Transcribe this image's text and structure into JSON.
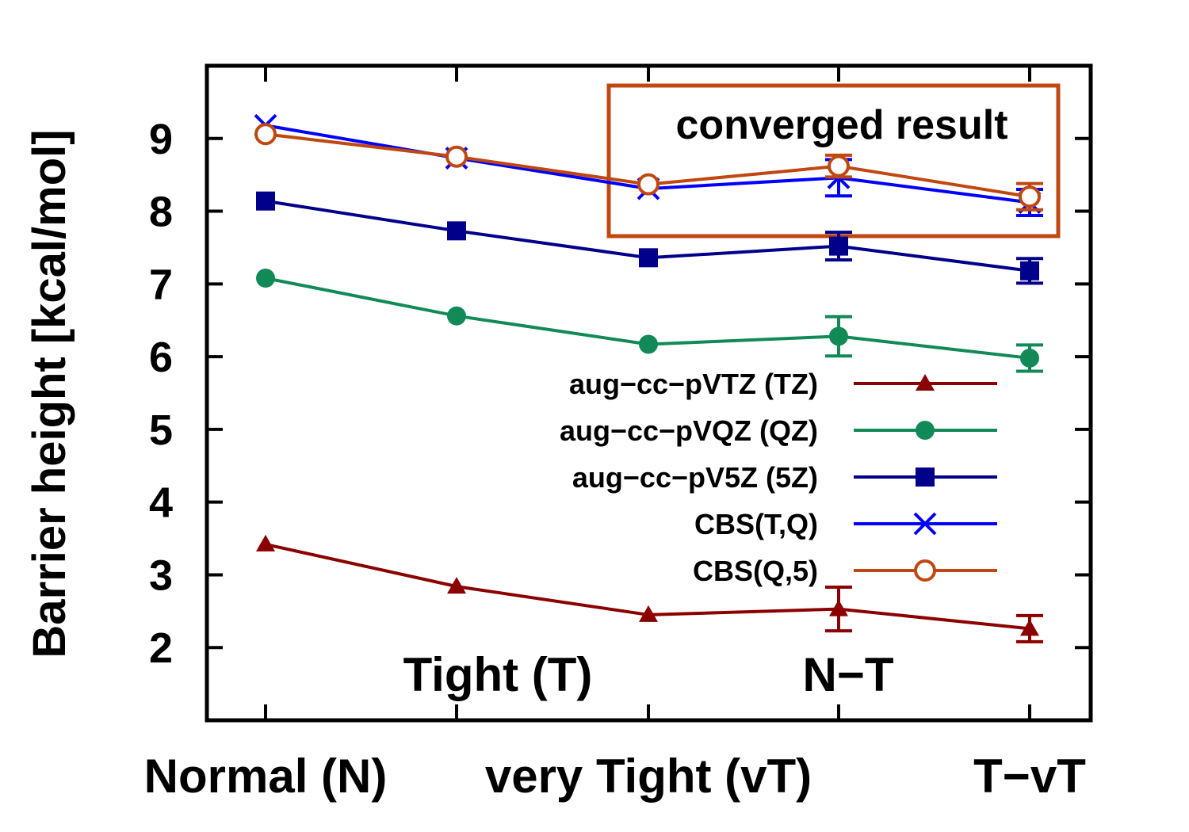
{
  "chart_data": {
    "type": "line",
    "ylabel": "Barrier height [kcal/mol]",
    "xlabel": "",
    "ylim": [
      1,
      10
    ],
    "y_ticks": [
      2,
      3,
      4,
      5,
      6,
      7,
      8,
      9
    ],
    "grid": false,
    "legend_position": "right-middle",
    "categories": [
      "Normal (N)",
      "Tight (T)",
      "very Tight (vT)",
      "N−T",
      "T−vT"
    ],
    "series": [
      {
        "name": "aug−cc−pVTZ (TZ)",
        "color": "#8b0000",
        "marker": "triangle",
        "values": [
          3.42,
          2.84,
          2.45,
          2.53,
          2.26
        ],
        "errors": [
          null,
          null,
          null,
          0.3,
          0.18
        ]
      },
      {
        "name": "aug−cc−pVQZ (QZ)",
        "color": "#118a57",
        "marker": "circle",
        "values": [
          7.08,
          6.56,
          6.17,
          6.28,
          5.98
        ],
        "errors": [
          null,
          null,
          null,
          0.27,
          0.18
        ]
      },
      {
        "name": "aug−cc−pV5Z (5Z)",
        "color": "#00008b",
        "marker": "square",
        "values": [
          8.14,
          7.73,
          7.36,
          7.52,
          7.18
        ],
        "errors": [
          null,
          null,
          null,
          0.19,
          0.17
        ]
      },
      {
        "name": "CBS(T,Q)",
        "color": "#0000ff",
        "marker": "cross",
        "values": [
          9.18,
          8.73,
          8.31,
          8.46,
          8.12
        ],
        "errors": [
          null,
          null,
          null,
          0.25,
          0.18
        ]
      },
      {
        "name": "CBS(Q,5)",
        "color": "#c04810",
        "marker": "open-circle",
        "values": [
          9.06,
          8.75,
          8.37,
          8.62,
          8.2
        ],
        "errors": [
          null,
          null,
          null,
          0.15,
          0.18
        ]
      }
    ],
    "annotations": [
      {
        "text": "converged result",
        "color": "#c04810"
      }
    ]
  }
}
